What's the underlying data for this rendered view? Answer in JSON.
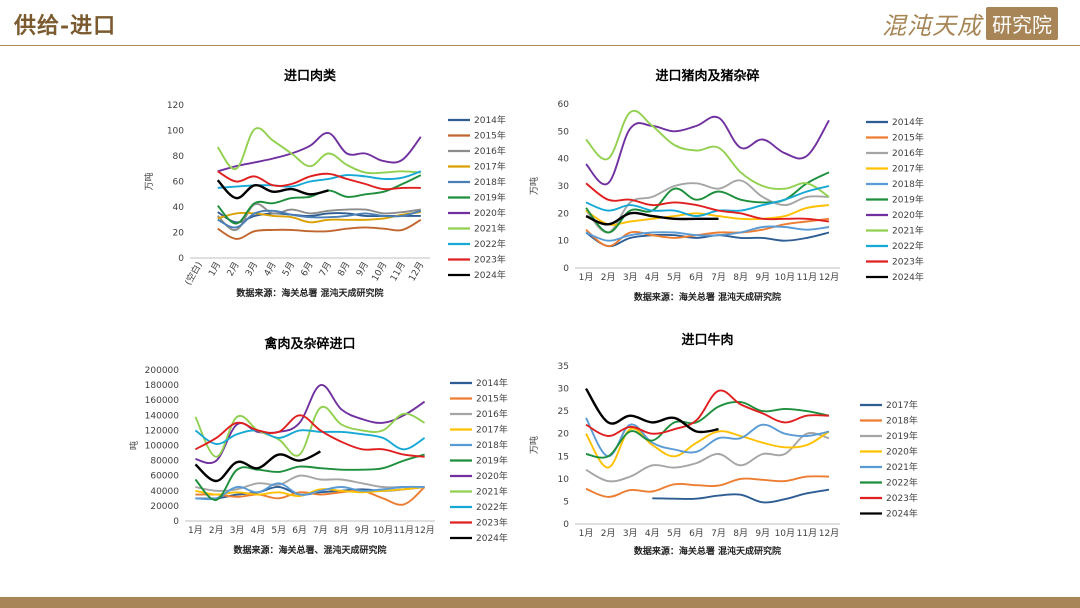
{
  "header": {
    "title": "供给-进口",
    "logo_script": "混沌天成",
    "logo_box": "研究院"
  },
  "chart_data": [
    {
      "id": "c1",
      "type": "line",
      "title": "进口肉类",
      "ylabel": "万吨",
      "categories": [
        "(空白)",
        "1月",
        "2月",
        "3月",
        "4月",
        "5月",
        "6月",
        "7月",
        "8月",
        "9月",
        "10月",
        "11月",
        "12月"
      ],
      "ylim": [
        0,
        120
      ],
      "yticks": [
        0,
        20,
        40,
        60,
        80,
        100,
        120
      ],
      "source": "数据来源：海关总署 混沌天成研究院",
      "series": [
        {
          "name": "2014年",
          "color": "#2e5d94",
          "values": [
            null,
            36,
            28,
            33,
            35,
            34,
            33,
            35,
            35,
            33,
            33,
            33,
            33
          ]
        },
        {
          "name": "2015年",
          "color": "#c0662e",
          "values": [
            null,
            23,
            15,
            21,
            22,
            22,
            21,
            21,
            23,
            24,
            23,
            22,
            30
          ]
        },
        {
          "name": "2016年",
          "color": "#8c8c8c",
          "values": [
            null,
            33,
            22,
            42,
            35,
            38,
            35,
            37,
            38,
            38,
            35,
            36,
            38
          ]
        },
        {
          "name": "2017年",
          "color": "#d9a000",
          "values": [
            null,
            31,
            35,
            35,
            33,
            32,
            28,
            30,
            30,
            30,
            31,
            34,
            36
          ]
        },
        {
          "name": "2018年",
          "color": "#4a7fb5",
          "values": [
            null,
            30,
            24,
            35,
            37,
            34,
            32,
            32,
            33,
            35,
            33,
            33,
            37
          ]
        },
        {
          "name": "2019年",
          "color": "#1e8f3c",
          "values": [
            null,
            41,
            27,
            43,
            43,
            47,
            48,
            53,
            48,
            50,
            52,
            58,
            65
          ]
        },
        {
          "name": "2020年",
          "color": "#7030a0",
          "values": [
            null,
            68,
            72,
            75,
            78,
            82,
            88,
            98,
            82,
            82,
            76,
            77,
            95
          ]
        },
        {
          "name": "2021年",
          "color": "#92d050",
          "values": [
            null,
            87,
            70,
            101,
            92,
            82,
            72,
            82,
            73,
            67,
            67,
            68,
            67
          ]
        },
        {
          "name": "2022年",
          "color": "#17a9d6",
          "values": [
            null,
            55,
            56,
            57,
            57,
            56,
            60,
            62,
            65,
            64,
            62,
            63,
            68
          ]
        },
        {
          "name": "2023年",
          "color": "#e02020",
          "values": [
            null,
            68,
            60,
            64,
            57,
            58,
            64,
            66,
            62,
            58,
            54,
            55,
            55
          ]
        },
        {
          "name": "2024年",
          "color": "#000000",
          "values": [
            null,
            61,
            47,
            57,
            52,
            54,
            50,
            53,
            null,
            null,
            null,
            null,
            null
          ]
        }
      ]
    },
    {
      "id": "c2",
      "type": "line",
      "title": "进口猪肉及猪杂碎",
      "ylabel": "万吨",
      "categories": [
        "1月",
        "2月",
        "3月",
        "4月",
        "5月",
        "6月",
        "7月",
        "8月",
        "9月",
        "10月",
        "11月",
        "12月"
      ],
      "ylim": [
        0,
        60
      ],
      "yticks": [
        0,
        10,
        20,
        30,
        40,
        50,
        60
      ],
      "source": "数据来源：海关总署 混沌天成研究院",
      "series": [
        {
          "name": "2014年",
          "color": "#2e5d94",
          "values": [
            13,
            8,
            11,
            12,
            12,
            11,
            12,
            11,
            11,
            10,
            11,
            13
          ]
        },
        {
          "name": "2015年",
          "color": "#ed7d31",
          "values": [
            14,
            8,
            13,
            12,
            11,
            12,
            13,
            13,
            14,
            16,
            17,
            18
          ]
        },
        {
          "name": "2016年",
          "color": "#a5a5a5",
          "values": [
            21,
            13,
            24,
            26,
            30,
            31,
            29,
            32,
            26,
            23,
            26,
            26
          ]
        },
        {
          "name": "2017年",
          "color": "#ffc000",
          "values": [
            21,
            16,
            17,
            18,
            19,
            20,
            19,
            18,
            18,
            19,
            22,
            23
          ]
        },
        {
          "name": "2018年",
          "color": "#5b9bd5",
          "values": [
            13,
            10,
            12,
            13,
            13,
            12,
            12,
            13,
            15,
            15,
            14,
            15
          ]
        },
        {
          "name": "2019年",
          "color": "#1e8f3c",
          "values": [
            22,
            13,
            21,
            21,
            29,
            25,
            28,
            25,
            24,
            25,
            31,
            35
          ]
        },
        {
          "name": "2020年",
          "color": "#7030a0",
          "values": [
            38,
            31,
            51,
            52,
            50,
            52,
            55,
            44,
            47,
            42,
            41,
            54
          ]
        },
        {
          "name": "2021年",
          "color": "#92d050",
          "values": [
            47,
            40,
            57,
            52,
            45,
            43,
            44,
            35,
            30,
            29,
            31,
            26
          ]
        },
        {
          "name": "2022年",
          "color": "#17a9d6",
          "values": [
            24,
            21,
            23,
            21,
            21,
            19,
            21,
            21,
            23,
            25,
            28,
            30
          ]
        },
        {
          "name": "2023年",
          "color": "#e02020",
          "values": [
            31,
            25,
            25,
            23,
            24,
            23,
            21,
            20,
            18,
            18,
            18,
            17
          ]
        },
        {
          "name": "2024年",
          "color": "#000000",
          "values": [
            19,
            16,
            20,
            19,
            18,
            18,
            18,
            null,
            null,
            null,
            null,
            null
          ]
        }
      ]
    },
    {
      "id": "c3",
      "type": "line",
      "title": "禽肉及杂碎进口",
      "ylabel": "吨",
      "categories": [
        "1月",
        "2月",
        "3月",
        "4月",
        "5月",
        "6月",
        "7月",
        "8月",
        "9月",
        "10月",
        "11月",
        "12月"
      ],
      "ylim": [
        0,
        200000
      ],
      "yticks": [
        0,
        20000,
        40000,
        60000,
        80000,
        100000,
        120000,
        140000,
        160000,
        180000,
        200000
      ],
      "source": "数据来源：海关总署、混沌天成研究院",
      "series": [
        {
          "name": "2014年",
          "color": "#2e5d94",
          "values": [
            30000,
            30000,
            35000,
            38000,
            45000,
            35000,
            38000,
            40000,
            42000,
            40000,
            42000,
            45000
          ]
        },
        {
          "name": "2015年",
          "color": "#ed7d31",
          "values": [
            35000,
            35000,
            32000,
            35000,
            30000,
            38000,
            35000,
            38000,
            40000,
            30000,
            22000,
            45000
          ]
        },
        {
          "name": "2016年",
          "color": "#a5a5a5",
          "values": [
            45000,
            40000,
            42000,
            50000,
            48000,
            60000,
            55000,
            55000,
            50000,
            45000,
            45000,
            45000
          ]
        },
        {
          "name": "2017年",
          "color": "#ffc000",
          "values": [
            40000,
            35000,
            38000,
            35000,
            38000,
            33000,
            42000,
            40000,
            38000,
            40000,
            42000,
            45000
          ]
        },
        {
          "name": "2018年",
          "color": "#5b9bd5",
          "values": [
            30000,
            30000,
            45000,
            38000,
            50000,
            35000,
            40000,
            45000,
            40000,
            42000,
            45000,
            45000
          ]
        },
        {
          "name": "2019年",
          "color": "#1e8f3c",
          "values": [
            55000,
            28000,
            68000,
            68000,
            65000,
            72000,
            70000,
            68000,
            68000,
            70000,
            80000,
            88000
          ]
        },
        {
          "name": "2020年",
          "color": "#7030a0",
          "values": [
            82000,
            80000,
            128000,
            118000,
            118000,
            130000,
            180000,
            148000,
            135000,
            130000,
            140000,
            158000
          ]
        },
        {
          "name": "2021年",
          "color": "#92d050",
          "values": [
            138000,
            85000,
            138000,
            120000,
            108000,
            88000,
            150000,
            128000,
            120000,
            120000,
            142000,
            130000
          ]
        },
        {
          "name": "2022年",
          "color": "#17a9d6",
          "values": [
            120000,
            102000,
            115000,
            120000,
            110000,
            120000,
            118000,
            118000,
            115000,
            110000,
            95000,
            110000
          ]
        },
        {
          "name": "2023年",
          "color": "#e02020",
          "values": [
            95000,
            110000,
            130000,
            120000,
            118000,
            140000,
            120000,
            105000,
            95000,
            95000,
            88000,
            85000
          ]
        },
        {
          "name": "2024年",
          "color": "#000000",
          "values": [
            75000,
            53000,
            78000,
            70000,
            88000,
            80000,
            92000,
            null,
            null,
            null,
            null,
            null
          ]
        }
      ]
    },
    {
      "id": "c4",
      "type": "line",
      "title": "进口牛肉",
      "ylabel": "万吨",
      "categories": [
        "1月",
        "2月",
        "3月",
        "4月",
        "5月",
        "6月",
        "7月",
        "8月",
        "9月",
        "10月",
        "11月",
        "12月"
      ],
      "ylim": [
        0,
        35
      ],
      "yticks": [
        0,
        5,
        10,
        15,
        20,
        25,
        30,
        35
      ],
      "source": "数据来源：海关总署 混沌天成研究院",
      "series": [
        {
          "name": "2017年",
          "color": "#2e5d94",
          "values": [
            null,
            null,
            null,
            5.7,
            5.6,
            5.6,
            6.3,
            6.5,
            4.8,
            5.5,
            6.8,
            7.6
          ]
        },
        {
          "name": "2018年",
          "color": "#ed7d31",
          "values": [
            7.8,
            6.0,
            7.5,
            7.2,
            8.8,
            8.6,
            8.5,
            10.0,
            9.8,
            9.5,
            10.5,
            10.5
          ]
        },
        {
          "name": "2019年",
          "color": "#a5a5a5",
          "values": [
            12.0,
            9.5,
            10.5,
            13.0,
            12.5,
            13.5,
            15.5,
            13.0,
            15.5,
            15.5,
            20.0,
            19.0
          ]
        },
        {
          "name": "2020年",
          "color": "#ffc000",
          "values": [
            20.0,
            12.5,
            21.0,
            17.5,
            15.0,
            18.0,
            20.5,
            19.5,
            18.0,
            17.0,
            17.5,
            20.5
          ]
        },
        {
          "name": "2021年",
          "color": "#5b9bd5",
          "values": [
            23.5,
            15.0,
            22.0,
            18.0,
            16.5,
            16.0,
            19.0,
            19.0,
            22.0,
            20.0,
            19.5,
            20.5
          ]
        },
        {
          "name": "2022年",
          "color": "#1e8f3c",
          "values": [
            15.5,
            15.0,
            20.5,
            18.5,
            22.5,
            22.5,
            26.0,
            27.0,
            25.0,
            25.5,
            25.0,
            24.0
          ]
        },
        {
          "name": "2023年",
          "color": "#e02020",
          "values": [
            22.0,
            19.5,
            21.5,
            20.0,
            21.0,
            23.0,
            29.5,
            26.5,
            24.5,
            22.5,
            24.0,
            24.0
          ]
        },
        {
          "name": "2024年",
          "color": "#000000",
          "values": [
            30.0,
            22.5,
            24.0,
            22.5,
            23.5,
            20.5,
            21.0,
            null,
            null,
            null,
            null,
            null
          ]
        }
      ]
    }
  ]
}
